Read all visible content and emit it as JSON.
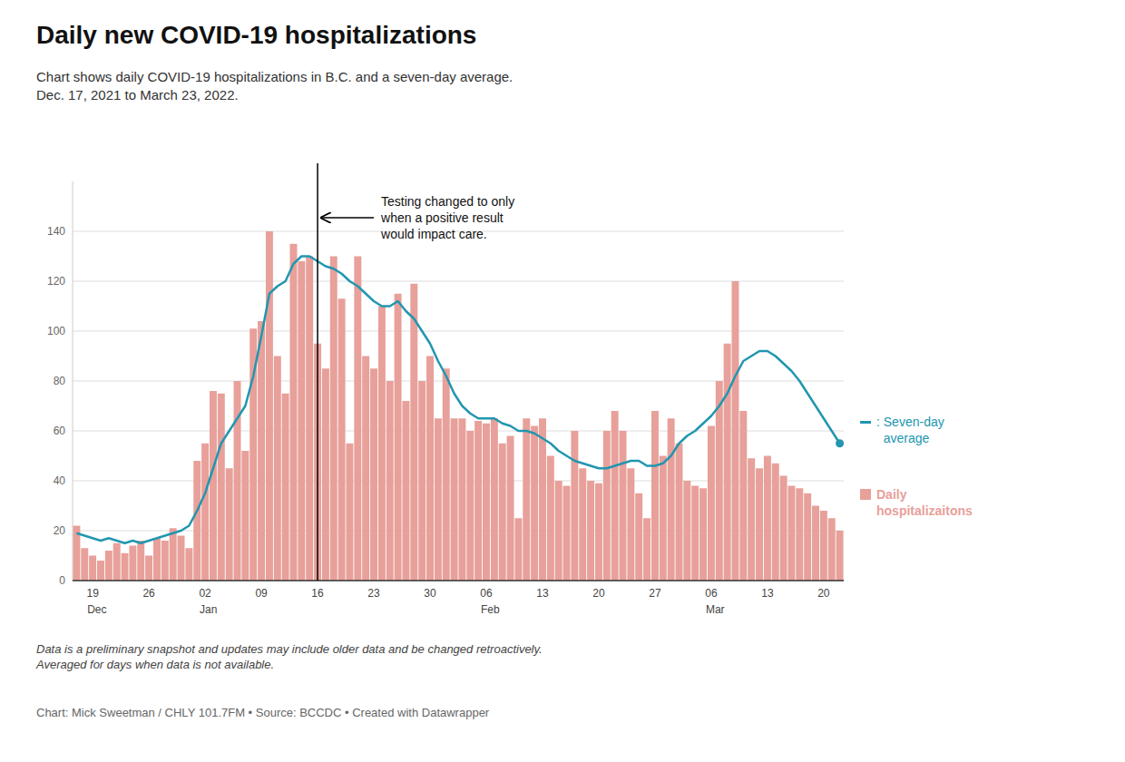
{
  "chart_data": {
    "type": "bar",
    "title": "Daily new COVID-19 hospitalizations",
    "subtitle": "Chart shows daily COVID-19 hospitalizations in B.C. and a seven-day average.\nDec. 17, 2021 to March 23, 2022.",
    "notes": "Data is a preliminary snapshot and updates may include older data and be changed retroactively.\nAveraged for days when data is not available.",
    "credits": "Chart: Mick Sweetman / CHLY 101.7FM • Source: BCCDC • Created with Datawrapper",
    "annotations": [
      "Testing changed to only\nwhen a positive result\nwould impact care."
    ],
    "vline_index": 30,
    "categories": [
      null,
      null,
      "19",
      null,
      null,
      null,
      null,
      null,
      null,
      "26",
      null,
      null,
      null,
      null,
      null,
      null,
      "02",
      null,
      null,
      null,
      null,
      null,
      null,
      "09",
      null,
      null,
      null,
      null,
      null,
      null,
      "16",
      null,
      null,
      null,
      null,
      null,
      null,
      "23",
      null,
      null,
      null,
      null,
      null,
      null,
      "30",
      null,
      null,
      null,
      null,
      null,
      null,
      "06",
      null,
      null,
      null,
      null,
      null,
      null,
      "13",
      null,
      null,
      null,
      null,
      null,
      null,
      "20",
      null,
      null,
      null,
      null,
      null,
      null,
      "27",
      null,
      null,
      null,
      null,
      null,
      null,
      "06",
      null,
      null,
      null,
      null,
      null,
      null,
      "13",
      null,
      null,
      null,
      null,
      null,
      null,
      "20",
      null,
      null
    ],
    "month_labels": [
      null,
      null,
      "Dec",
      null,
      null,
      null,
      null,
      null,
      null,
      null,
      null,
      null,
      null,
      null,
      null,
      null,
      "Jan",
      null,
      null,
      null,
      null,
      null,
      null,
      null,
      null,
      null,
      null,
      null,
      null,
      null,
      null,
      null,
      null,
      null,
      null,
      null,
      null,
      null,
      null,
      null,
      null,
      null,
      null,
      null,
      null,
      null,
      null,
      null,
      null,
      null,
      null,
      "Feb",
      null,
      null,
      null,
      null,
      null,
      null,
      null,
      null,
      null,
      null,
      null,
      null,
      null,
      null,
      null,
      null,
      null,
      null,
      null,
      null,
      null,
      null,
      null,
      null,
      null,
      null,
      null,
      "Mar",
      null,
      null,
      null,
      null,
      null,
      null,
      null,
      null,
      null,
      null,
      null,
      null,
      null,
      null,
      null,
      null
    ],
    "series": [
      {
        "name": "Daily\nhospitalizaitons",
        "type": "bar",
        "color": "#e8a09a",
        "values": [
          22,
          13,
          10,
          8,
          12,
          15,
          11,
          14,
          16,
          10,
          17,
          16,
          21,
          18,
          13,
          48,
          55,
          76,
          75,
          45,
          80,
          52,
          101,
          104,
          140,
          90,
          75,
          135,
          128,
          130,
          95,
          85,
          130,
          113,
          55,
          130,
          90,
          85,
          110,
          80,
          115,
          72,
          119,
          80,
          90,
          65,
          85,
          65,
          65,
          60,
          64,
          63,
          65,
          55,
          58,
          25,
          65,
          62,
          65,
          50,
          40,
          38,
          60,
          45,
          40,
          39,
          60,
          68,
          60,
          45,
          35,
          25,
          68,
          50,
          65,
          55,
          40,
          38,
          37,
          62,
          80,
          95,
          120,
          68,
          49,
          45,
          50,
          47,
          42,
          38,
          37,
          35,
          30,
          28,
          25,
          20
        ]
      },
      {
        "name": ": Seven-day\n  average",
        "type": "line",
        "color": "#2196b0",
        "marker": "end",
        "values": [
          19,
          18,
          17,
          16,
          17,
          16,
          15,
          16,
          15,
          16,
          17,
          18,
          19,
          20,
          22,
          28,
          35,
          45,
          55,
          60,
          65,
          70,
          82,
          98,
          115,
          118,
          120,
          127,
          130,
          130,
          128,
          126,
          125,
          123,
          120,
          118,
          115,
          112,
          110,
          110,
          112,
          108,
          105,
          100,
          95,
          88,
          82,
          75,
          70,
          67,
          65,
          65,
          65,
          63,
          62,
          60,
          60,
          59,
          57,
          55,
          52,
          50,
          48,
          47,
          46,
          45,
          45,
          46,
          47,
          48,
          48,
          46,
          46,
          47,
          50,
          55,
          58,
          60,
          63,
          66,
          70,
          75,
          82,
          88,
          90,
          92,
          92,
          90,
          87,
          84,
          80,
          75,
          70,
          65,
          60,
          55
        ]
      }
    ],
    "ylim": [
      0,
      160
    ],
    "yticks": [
      0,
      20,
      40,
      60,
      80,
      100,
      120,
      140
    ],
    "grid": true
  }
}
